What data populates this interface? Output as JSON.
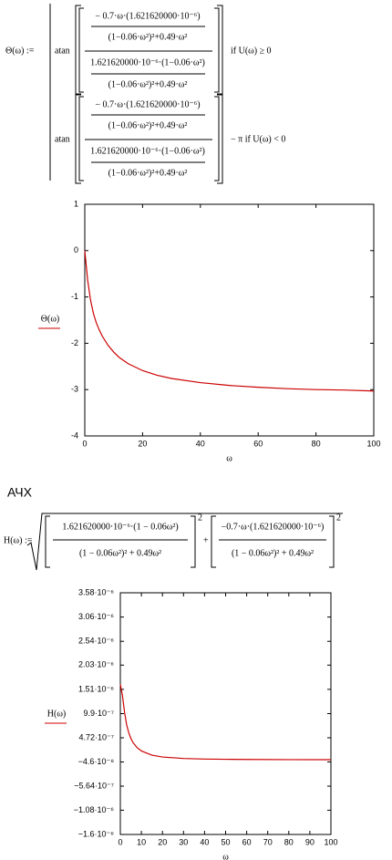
{
  "formula1": {
    "lhs": "Θ(ω) :=",
    "branches": [
      {
        "func": "atan",
        "num_num": "− 0.7·ω·(1.621620000·10⁻⁶)",
        "num_den": "(1−0.06·ω²)²+0.49·ω²",
        "den_num": "1.621620000·10⁻⁶·(1−0.06·ω²)",
        "den_den": "(1−0.06·ω²)²+0.49·ω²",
        "condition": "if  U(ω) ≥ 0"
      },
      {
        "func": "atan",
        "num_num": "− 0.7·ω·(1.621620000·10⁻⁶)",
        "num_den": "(1−0.06·ω²)²+0.49·ω²",
        "den_num": "1.621620000·10⁻⁶·(1−0.06·ω²)",
        "den_den": "(1−0.06·ω²)²+0.49·ω²",
        "condition": "− π  if  U(ω) < 0"
      }
    ]
  },
  "heading": "АЧХ",
  "formula2": {
    "lhs": "H(ω) :=",
    "operator": "+",
    "terms": [
      {
        "num": "1.621620000·10⁻⁶·(1 − 0.06ω²)",
        "den": "(1 − 0.06ω²)² + 0.49ω²",
        "power": "2"
      },
      {
        "num": "−0.7·ω·(1.621620000·10⁻⁶)",
        "den": "(1 − 0.06ω²)² + 0.49ω²",
        "power": "2"
      }
    ]
  },
  "chart_data": [
    {
      "type": "line",
      "x_label": "ω",
      "y_label": "Θ(ω)",
      "x": [
        0,
        1,
        2,
        3,
        4,
        5,
        6,
        8,
        10,
        12,
        15,
        20,
        25,
        30,
        40,
        50,
        60,
        70,
        80,
        90,
        100
      ],
      "series": [
        {
          "name": "Θ(ω)",
          "color": "#cc0000",
          "values": [
            0,
            -0.64,
            -1.07,
            -1.36,
            -1.56,
            -1.71,
            -1.84,
            -2.04,
            -2.19,
            -2.31,
            -2.44,
            -2.59,
            -2.69,
            -2.76,
            -2.85,
            -2.91,
            -2.95,
            -2.98,
            -3.0,
            -3.01,
            -3.03
          ]
        }
      ],
      "xlim": [
        0,
        100
      ],
      "xticks": [
        0,
        20,
        40,
        60,
        80,
        100
      ],
      "ylim": [
        -4,
        1
      ],
      "yticks": [
        -4,
        -3,
        -2,
        -1,
        0,
        1
      ]
    },
    {
      "type": "line",
      "x_label": "ω",
      "y_label": "H(ω)",
      "x": [
        0,
        1,
        2,
        3,
        4,
        5,
        6,
        8,
        10,
        15,
        20,
        30,
        40,
        50,
        60,
        80,
        100
      ],
      "series": [
        {
          "name": "H(ω)",
          "color": "#cc0000",
          "values": [
            1.62e-06,
            1.38e-06,
            1.02e-06,
            7.5e-07,
            5.8e-07,
            4.6e-07,
            3.7e-07,
            2.6e-07,
            1.9e-07,
            9.9e-08,
            6e-08,
            2.8e-08,
            1.6e-08,
            1.1e-08,
            7.5e-09,
            4.2e-09,
            2.7e-09
          ]
        }
      ],
      "xlim": [
        0,
        100
      ],
      "xticks": [
        0,
        10,
        20,
        30,
        40,
        50,
        60,
        70,
        80,
        90,
        100
      ],
      "ylim": [
        -1.6e-06,
        3.58e-06
      ],
      "yticks": [
        {
          "value": -1.6e-06,
          "label": "−1.6·10⁻⁶"
        },
        {
          "value": -1.08e-06,
          "label": "−1.08·10⁻⁶"
        },
        {
          "value": -5.64e-07,
          "label": "−5.64·10⁻⁷"
        },
        {
          "value": -4.6e-08,
          "label": "−4.6·10⁻⁸"
        },
        {
          "value": 4.72e-07,
          "label": "4.72·10⁻⁷"
        },
        {
          "value": 9.9e-07,
          "label": "9.9·10⁻⁷"
        },
        {
          "value": 1.51e-06,
          "label": "1.51·10⁻⁶"
        },
        {
          "value": 2.03e-06,
          "label": "2.03·10⁻⁶"
        },
        {
          "value": 2.54e-06,
          "label": "2.54·10⁻⁶"
        },
        {
          "value": 3.06e-06,
          "label": "3.06·10⁻⁶"
        },
        {
          "value": 3.58e-06,
          "label": "3.58·10⁻⁶"
        }
      ]
    }
  ]
}
